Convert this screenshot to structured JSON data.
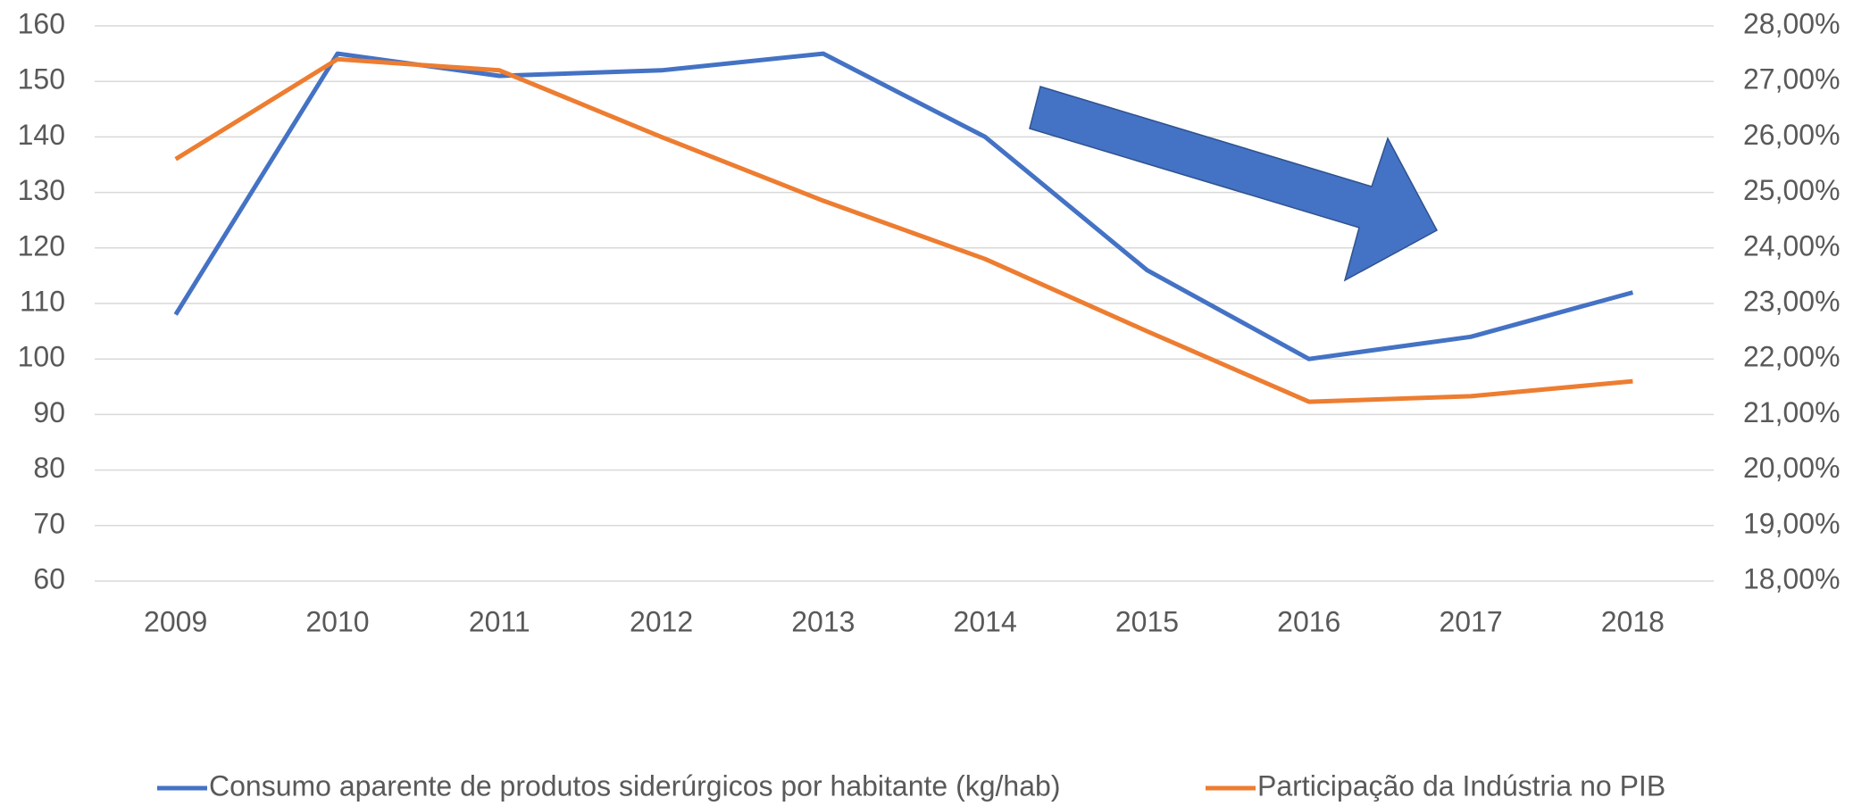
{
  "chart_data": {
    "type": "line",
    "categories": [
      "2009",
      "2010",
      "2011",
      "2012",
      "2013",
      "2014",
      "2015",
      "2016",
      "2017",
      "2018"
    ],
    "series": [
      {
        "name": "Consumo aparente de produtos siderúrgicos por habitante (kg/hab)",
        "color": "#4472c4",
        "values": [
          108,
          155,
          151,
          152,
          155,
          140,
          116,
          100,
          104,
          112
        ]
      },
      {
        "name": "Participação da Indústria no PIB",
        "color": "#ed7d31",
        "axis": "y2",
        "values": [
          25.6,
          27.4,
          27.2,
          26.0,
          24.85,
          23.8,
          22.5,
          21.23,
          21.33,
          21.6
        ]
      }
    ],
    "ylim": [
      60,
      160
    ],
    "yticks": [
      60,
      70,
      80,
      90,
      100,
      110,
      120,
      130,
      140,
      150,
      160
    ],
    "y2lim": [
      18,
      28
    ],
    "y2ticks": [
      {
        "value": 18,
        "label": "18,00%"
      },
      {
        "value": 19,
        "label": "19,00%"
      },
      {
        "value": 20,
        "label": "20,00%"
      },
      {
        "value": 21,
        "label": "21,00%"
      },
      {
        "value": 22,
        "label": "22,00%"
      },
      {
        "value": 23,
        "label": "23,00%"
      },
      {
        "value": 24,
        "label": "24,00%"
      },
      {
        "value": 25,
        "label": "25,00%"
      },
      {
        "value": 26,
        "label": "26,00%"
      },
      {
        "value": 27,
        "label": "27,00%"
      },
      {
        "value": 28,
        "label": "28,00%"
      }
    ],
    "grid": true,
    "legend": "bottom"
  }
}
